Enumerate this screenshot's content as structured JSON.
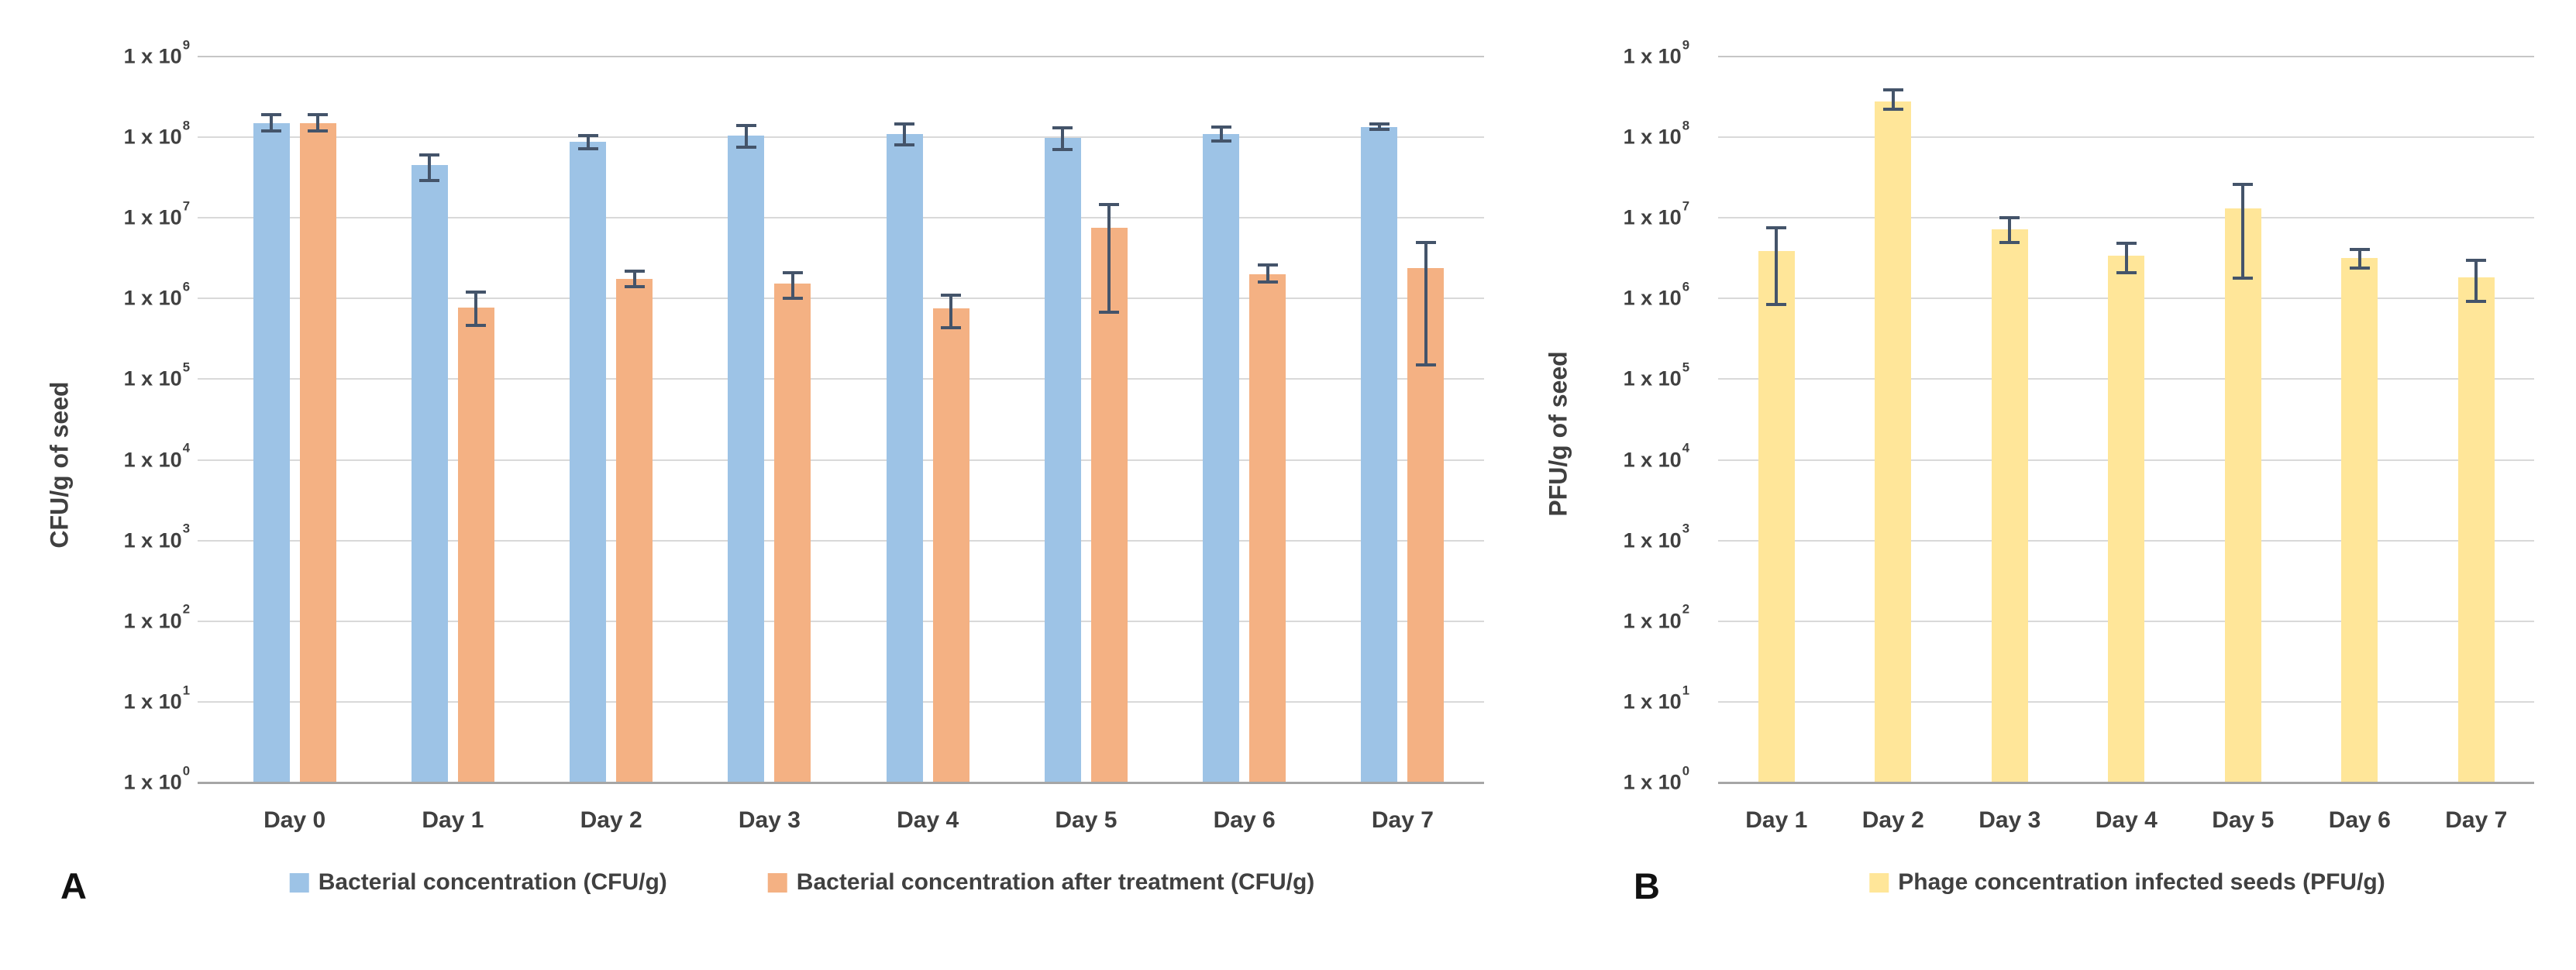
{
  "figure": {
    "background": "#FFFFFF",
    "text_color": "#404040",
    "gridline_color": "#D9D9D9",
    "top_gridline_color": "#C6C6C6",
    "axis_line_color": "#A6A6A6",
    "error_bar_color": "#44546A",
    "panel_letter_color": "#111111"
  },
  "chart_data": [
    {
      "type": "bar",
      "panel_label": "A",
      "ylabel": "CFU/g of seed",
      "y_scale": "log10",
      "ylim": [
        1,
        1000000000
      ],
      "y_tick_base": "1 x 10",
      "y_tick_exponents": [
        9,
        8,
        7,
        6,
        5,
        4,
        3,
        2,
        1,
        0
      ],
      "grid": true,
      "legend_position": "bottom",
      "categories": [
        "Day 0",
        "Day 1",
        "Day 2",
        "Day 3",
        "Day 4",
        "Day 5",
        "Day 6",
        "Day 7"
      ],
      "series": [
        {
          "name": "Bacterial concentration (CFU/g)",
          "color": "#9DC3E6",
          "values": [
            150000000.0,
            45000000.0,
            88000000.0,
            105000000.0,
            110000000.0,
            98000000.0,
            110000000.0,
            135000000.0
          ],
          "error_low": [
            120000000.0,
            29000000.0,
            72000000.0,
            75000000.0,
            80000000.0,
            70000000.0,
            90000000.0,
            125000000.0
          ],
          "error_high": [
            190000000.0,
            60000000.0,
            105000000.0,
            140000000.0,
            145000000.0,
            130000000.0,
            135000000.0,
            145000000.0
          ]
        },
        {
          "name": "Bacterial concentration after treatment (CFU/g)",
          "color": "#F4B183",
          "values": [
            150000000.0,
            780000.0,
            1750000.0,
            1550000.0,
            760000.0,
            7600000.0,
            2000000.0,
            2400000.0
          ],
          "error_low": [
            120000000.0,
            460000.0,
            1400000.0,
            1000000.0,
            430000.0,
            680000.0,
            1600000.0,
            150000.0
          ],
          "error_high": [
            190000000.0,
            1200000.0,
            2200000.0,
            2100000.0,
            1100000.0,
            14500000.0,
            2600000.0,
            5000000.0
          ]
        }
      ]
    },
    {
      "type": "bar",
      "panel_label": "B",
      "ylabel": "PFU/g of seed",
      "y_scale": "log10",
      "ylim": [
        1,
        1000000000
      ],
      "y_tick_base": "1 x 10",
      "y_tick_exponents": [
        9,
        8,
        7,
        6,
        5,
        4,
        3,
        2,
        1,
        0
      ],
      "grid": true,
      "legend_position": "bottom",
      "categories": [
        "Day 1",
        "Day 2",
        "Day 3",
        "Day 4",
        "Day 5",
        "Day 6",
        "Day 7"
      ],
      "series": [
        {
          "name": "Phage concentration infected seeds (PFU/g)",
          "color": "#FFE699",
          "values": [
            3900000.0,
            280000000.0,
            7200000.0,
            3400000.0,
            13000000.0,
            3200000.0,
            1850000.0
          ],
          "error_low": [
            850000.0,
            220000000.0,
            5000000.0,
            2100000.0,
            1800000.0,
            2400000.0,
            930000.0
          ],
          "error_high": [
            7500000.0,
            390000000.0,
            10000000.0,
            4800000.0,
            26000000.0,
            4100000.0,
            3000000.0
          ]
        }
      ]
    }
  ]
}
